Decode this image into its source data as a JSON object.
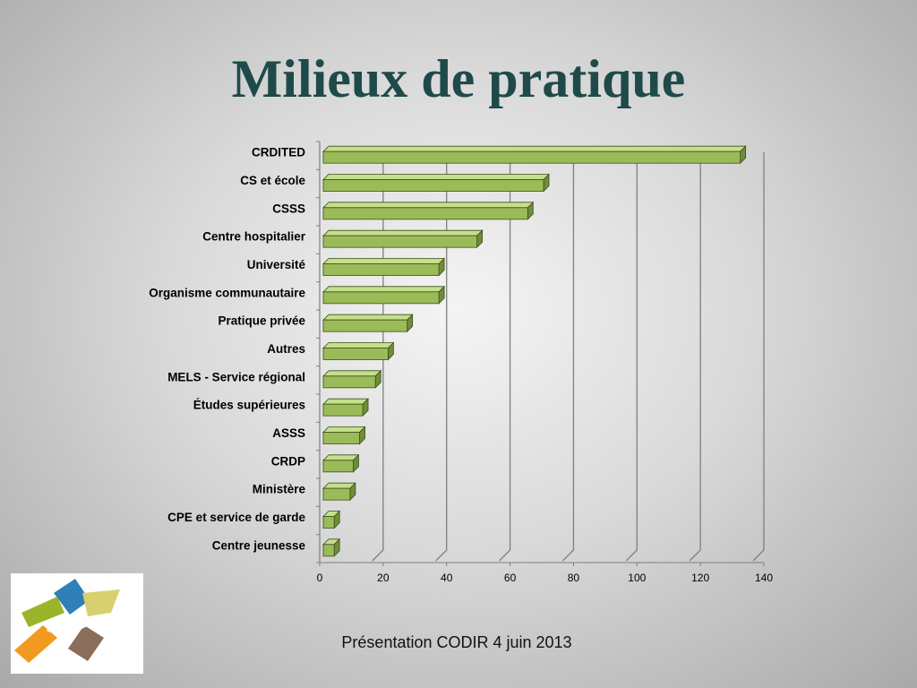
{
  "slide": {
    "title": "Milieux de pratique",
    "footer": "Présentation CODIR 4 juin 2013"
  },
  "colors": {
    "title": "#1f4a4a",
    "bar_face": "#9bbb59",
    "bar_top": "#c5df8a",
    "bar_side": "#6f8c3a",
    "grid": "#7f7f7f"
  },
  "chart_data": {
    "type": "bar",
    "orientation": "horizontal",
    "three_d": true,
    "title": "",
    "xlabel": "",
    "ylabel": "",
    "categories": [
      "CRDITED",
      "CS et école",
      "CSSS",
      "Centre hospitalier",
      "Université",
      "Organisme communautaire",
      "Pratique privée",
      "Autres",
      "MELS - Service régional",
      "Études supérieures",
      "ASSS",
      "CRDP",
      "Ministère",
      "CPE et service de garde",
      "Centre jeunesse"
    ],
    "values": [
      132,
      70,
      65,
      49,
      37,
      37,
      27,
      21,
      17,
      13,
      12,
      10,
      9,
      4,
      4
    ],
    "xlim": [
      0,
      140
    ],
    "xticks": [
      0,
      20,
      40,
      60,
      80,
      100,
      120,
      140
    ],
    "grid": true,
    "legend": "none"
  }
}
